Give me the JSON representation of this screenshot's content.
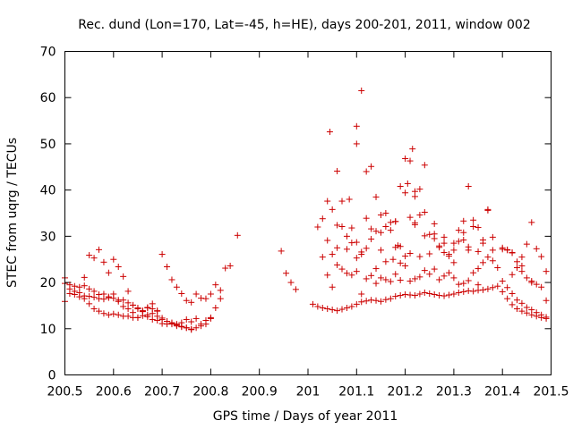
{
  "chart_data": {
    "type": "scatter",
    "title": "Rec. dund (Lon=170, Lat=-45, h=HE), days 200-201, 2011, window 002",
    "xlabel": "GPS time / Days of year 2011",
    "ylabel": "STEC from uqrg / TECUs",
    "xlim": [
      200.5,
      201.5
    ],
    "ylim": [
      0,
      70
    ],
    "xticks": [
      200.5,
      200.6,
      200.7,
      200.8,
      200.9,
      201,
      201.1,
      201.2,
      201.3,
      201.4,
      201.5
    ],
    "xtick_labels": [
      "200.5",
      "200.6",
      "200.7",
      "200.8",
      "200.9",
      "201",
      "201.1",
      "201.2",
      "201.3",
      "201.4",
      "201.5"
    ],
    "yticks": [
      0,
      10,
      20,
      30,
      40,
      50,
      60,
      70
    ],
    "ytick_labels": [
      "0",
      "10",
      "20",
      "30",
      "40",
      "50",
      "60",
      "70"
    ],
    "marker": "+",
    "marker_color": "#cc0000",
    "grid": false,
    "series": [
      {
        "name": "STEC",
        "x": [
          200.5,
          200.51,
          200.52,
          200.53,
          200.54,
          200.55,
          200.56,
          200.57,
          200.58,
          200.59,
          200.6,
          200.61,
          200.62,
          200.63,
          200.64,
          200.65,
          200.66,
          200.67,
          200.68,
          200.69,
          200.7,
          200.71,
          200.72,
          200.73,
          200.74,
          200.75,
          200.76,
          200.77,
          200.78,
          200.79,
          200.8,
          200.81,
          200.82,
          200.5,
          200.51,
          200.52,
          200.53,
          200.54,
          200.55,
          200.56,
          200.57,
          200.58,
          200.59,
          200.6,
          200.61,
          200.62,
          200.63,
          200.64,
          200.65,
          200.66,
          200.67,
          200.68,
          200.69,
          200.7,
          200.71,
          200.72,
          200.73,
          200.74,
          200.75,
          200.76,
          200.5,
          200.51,
          200.52,
          200.53,
          200.54,
          200.55,
          200.56,
          200.57,
          200.58,
          200.59,
          200.6,
          200.61,
          200.62,
          200.63,
          200.64,
          200.65,
          200.66,
          200.67,
          200.68,
          200.69,
          200.7,
          200.71,
          200.72,
          200.73,
          200.74,
          200.75,
          200.76,
          200.77,
          200.78,
          200.79,
          200.8,
          200.54,
          200.55,
          200.56,
          200.57,
          200.58,
          200.59,
          200.6,
          200.61,
          200.62,
          200.63,
          200.64,
          200.65,
          200.66,
          200.67,
          200.68,
          200.69,
          200.7,
          200.71,
          200.72,
          200.73,
          200.74,
          200.75,
          200.76,
          200.77,
          200.78,
          200.79,
          200.8,
          200.81,
          200.82,
          200.83,
          200.84,
          200.855,
          200.945,
          200.955,
          200.965,
          200.975,
          201.01,
          201.02,
          201.03,
          201.04,
          201.05,
          201.06,
          201.07,
          201.08,
          201.09,
          201.1,
          201.11,
          201.12,
          201.13,
          201.14,
          201.15,
          201.16,
          201.17,
          201.18,
          201.19,
          201.2,
          201.21,
          201.22,
          201.23,
          201.24,
          201.25,
          201.26,
          201.27,
          201.28,
          201.29,
          201.3,
          201.31,
          201.32,
          201.33,
          201.34,
          201.35,
          201.36,
          201.37,
          201.38,
          201.39,
          201.4,
          201.41,
          201.42,
          201.43,
          201.44,
          201.45,
          201.46,
          201.47,
          201.48,
          201.49,
          201.03,
          201.04,
          201.05,
          201.06,
          201.07,
          201.08,
          201.09,
          201.1,
          201.11,
          201.12,
          201.13,
          201.14,
          201.15,
          201.16,
          201.17,
          201.18,
          201.19,
          201.2,
          201.21,
          201.22,
          201.23,
          201.24,
          201.25,
          201.26,
          201.27,
          201.28,
          201.29,
          201.3,
          201.31,
          201.32,
          201.33,
          201.34,
          201.35,
          201.36,
          201.37,
          201.38,
          201.39,
          201.4,
          201.41,
          201.42,
          201.43,
          201.44,
          201.45,
          201.46,
          201.47,
          201.48,
          201.49,
          201.02,
          201.03,
          201.04,
          201.05,
          201.06,
          201.07,
          201.08,
          201.09,
          201.1,
          201.11,
          201.12,
          201.13,
          201.14,
          201.15,
          201.16,
          201.17,
          201.18,
          201.19,
          201.2,
          201.21,
          201.22,
          201.23,
          201.24,
          201.25,
          201.26,
          201.27,
          201.28,
          201.29,
          201.3,
          201.31,
          201.32,
          201.33,
          201.34,
          201.35,
          201.36,
          201.37,
          201.38,
          201.4,
          201.41,
          201.42,
          201.43,
          201.44,
          201.45,
          201.46,
          201.47,
          201.48,
          201.49,
          201.04,
          201.05,
          201.06,
          201.07,
          201.08,
          201.09,
          201.1,
          201.11,
          201.12,
          201.13,
          201.14,
          201.15,
          201.16,
          201.17,
          201.18,
          201.19,
          201.2,
          201.21,
          201.22,
          201.23,
          201.24,
          201.25,
          201.26,
          201.27,
          201.28,
          201.29,
          201.3,
          201.31,
          201.32,
          201.33,
          201.34,
          201.35,
          201.36,
          201.37,
          201.38,
          201.4,
          201.41,
          201.42,
          201.43,
          201.44,
          201.45,
          201.46,
          201.47,
          201.48,
          201.49,
          201.045,
          201.06,
          201.085,
          201.1,
          201.11,
          201.12,
          201.14,
          201.16,
          201.175,
          201.185,
          201.19,
          201.2,
          201.205,
          201.21,
          201.215,
          201.22,
          201.23,
          201.24,
          201.33,
          201.1,
          201.13,
          201.15,
          201.18,
          201.22,
          201.26,
          201.28,
          201.3,
          201.32,
          201.35,
          201.46,
          201.44,
          201.42
        ],
        "y": [
          19.8,
          19.5,
          19.2,
          19.0,
          19.3,
          18.6,
          18.1,
          17.4,
          17.5,
          16.7,
          16.6,
          15.9,
          14.8,
          14.3,
          13.5,
          12.4,
          12.8,
          12.6,
          12.0,
          11.8,
          11.1,
          11.0,
          11.3,
          10.6,
          10.4,
          10.2,
          9.9,
          10.2,
          10.6,
          11.0,
          12.2,
          14.5,
          16.5,
          21.0,
          18.6,
          18.1,
          17.8,
          17.1,
          17.0,
          16.8,
          16.5,
          16.4,
          16.9,
          17.5,
          16.2,
          16.2,
          15.6,
          15.1,
          14.3,
          13.7,
          13.0,
          13.3,
          12.7,
          12.0,
          11.6,
          11.0,
          10.8,
          10.5,
          10.2,
          9.8,
          15.9,
          17.6,
          17.4,
          16.9,
          16.5,
          15.4,
          14.3,
          13.8,
          13.3,
          13.0,
          13.2,
          13.0,
          12.7,
          12.7,
          12.4,
          12.4,
          13.9,
          14.5,
          14.3,
          13.8,
          12.3,
          11.6,
          11.2,
          11.0,
          11.3,
          12.0,
          11.5,
          12.2,
          11.0,
          11.8,
          12.4,
          21.1,
          25.9,
          25.3,
          27.1,
          24.4,
          22.1,
          25.0,
          23.4,
          21.3,
          18.1,
          15.1,
          14.5,
          13.8,
          14.6,
          15.4,
          13.9,
          26.1,
          23.4,
          20.6,
          19.0,
          17.6,
          16.1,
          15.7,
          17.5,
          16.6,
          16.5,
          17.5,
          19.5,
          18.3,
          23.1,
          23.6,
          30.2,
          26.8,
          22.0,
          20.0,
          18.5,
          15.3,
          14.8,
          14.5,
          14.3,
          14.1,
          13.9,
          14.2,
          14.5,
          14.8,
          15.3,
          15.8,
          16.0,
          16.2,
          16.1,
          15.9,
          16.3,
          16.5,
          17.0,
          17.2,
          17.4,
          17.3,
          17.2,
          17.5,
          17.8,
          17.6,
          17.4,
          17.2,
          17.1,
          17.3,
          17.5,
          17.8,
          18.0,
          18.2,
          18.1,
          18.3,
          18.4,
          18.6,
          18.9,
          19.2,
          18.0,
          16.5,
          15.2,
          14.3,
          13.8,
          13.4,
          13.0,
          12.7,
          12.4,
          12.2,
          25.5,
          29.1,
          19.0,
          23.8,
          22.9,
          22.0,
          21.6,
          22.4,
          17.5,
          20.8,
          21.5,
          19.8,
          21.0,
          20.6,
          20.2,
          21.8,
          20.5,
          23.6,
          20.3,
          20.8,
          21.2,
          22.6,
          21.8,
          22.9,
          20.6,
          21.4,
          22.1,
          21.0,
          19.6,
          19.8,
          20.4,
          22.1,
          19.5,
          24.3,
          25.5,
          24.7,
          23.2,
          20.3,
          18.9,
          17.6,
          16.2,
          15.5,
          14.6,
          14.1,
          13.5,
          13.0,
          12.5,
          32.0,
          33.8,
          21.6,
          26.1,
          32.4,
          37.6,
          27.2,
          31.8,
          25.3,
          26.6,
          27.4,
          29.4,
          23.0,
          27.0,
          24.5,
          33.0,
          27.6,
          24.2,
          25.7,
          26.3,
          32.9,
          25.6,
          30.1,
          26.2,
          29.5,
          27.9,
          29.8,
          25.7,
          28.5,
          31.3,
          29.2,
          27.0,
          32.1,
          26.7,
          28.5,
          35.6,
          27.0,
          27.2,
          27.0,
          26.5,
          23.2,
          22.4,
          21.0,
          20.0,
          19.6,
          19.0,
          16.1,
          37.6,
          35.8,
          27.5,
          32.1,
          30.0,
          28.6,
          50.0,
          26.1,
          33.9,
          31.6,
          31.1,
          34.6,
          32.1,
          31.3,
          33.2,
          40.8,
          39.4,
          34.1,
          32.5,
          34.6,
          35.2,
          30.4,
          30.5,
          27.6,
          26.5,
          26.1,
          27.0,
          28.9,
          33.3,
          27.7,
          33.5,
          31.9,
          29.2,
          35.8,
          29.8,
          27.5,
          27.1,
          26.4,
          24.5,
          23.6,
          28.3,
          20.3,
          27.3,
          25.6,
          22.4,
          52.6,
          44.1,
          38.0,
          28.7,
          61.5,
          44.0,
          38.5,
          35.0,
          25.0,
          28.0,
          27.8,
          46.8,
          41.4,
          46.3,
          48.9,
          39.7,
          40.2,
          45.4,
          40.8,
          53.8,
          45.1,
          30.8,
          33.2,
          38.6,
          32.7,
          28.5,
          24.3,
          30.8,
          23.0,
          33.0,
          25.5,
          21.7
        ]
      }
    ]
  }
}
